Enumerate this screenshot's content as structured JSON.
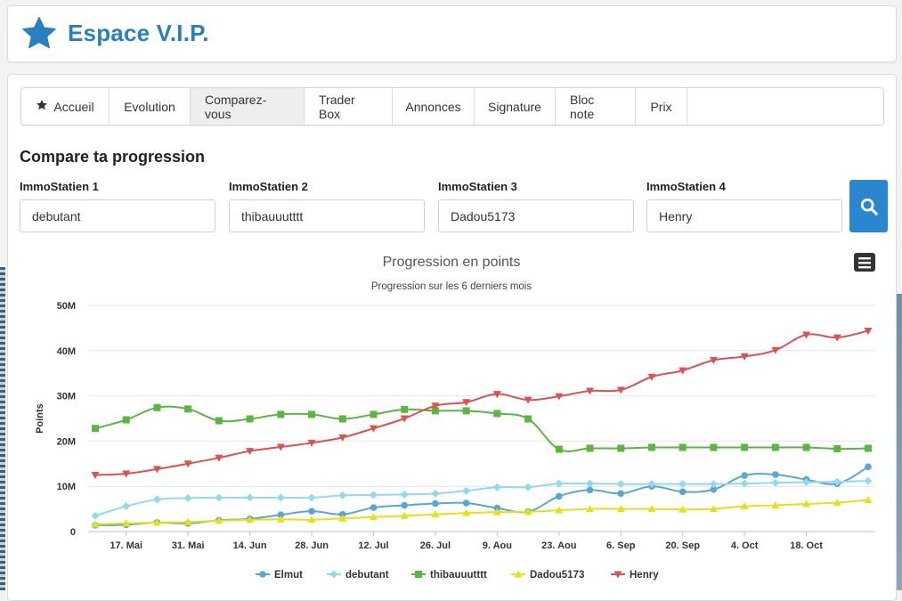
{
  "brand": {
    "title": "Espace V.I.P."
  },
  "tabs": [
    {
      "label": "Accueil",
      "icon": "star-icon"
    },
    {
      "label": "Evolution"
    },
    {
      "label": "Comparez-vous",
      "active": true
    },
    {
      "label": "Trader Box"
    },
    {
      "label": "Annonces"
    },
    {
      "label": "Signature"
    },
    {
      "label": "Bloc note"
    },
    {
      "label": "Prix"
    }
  ],
  "compare": {
    "title": "Compare ta progression",
    "fields": [
      {
        "label": "ImmoStatien 1",
        "value": "debutant"
      },
      {
        "label": "ImmoStatien 2",
        "value": "thibauuutttt"
      },
      {
        "label": "ImmoStatien 3",
        "value": "Dadou5173"
      },
      {
        "label": "ImmoStatien 4",
        "value": "Henry"
      }
    ],
    "search_icon": "search-icon"
  },
  "chart_data": {
    "type": "line",
    "title": "Progression en points",
    "subtitle": "Progression sur les 6 derniers mois",
    "ylabel": "Points",
    "ylim": [
      0,
      50000000
    ],
    "y_ticks": [
      "0",
      "10M",
      "20M",
      "30M",
      "40M",
      "50M"
    ],
    "x_ticks": [
      "17. Mai",
      "31. Mai",
      "14. Jun",
      "28. Jun",
      "12. Jul",
      "26. Jul",
      "9. Aou",
      "23. Aou",
      "6. Sep",
      "20. Sep",
      "4. Oct",
      "18. Oct"
    ],
    "grid": true,
    "legend": "bottom-center",
    "menu_icon": "hamburger-menu-icon",
    "x": [
      "2023-05-10",
      "2023-05-17",
      "2023-05-24",
      "2023-05-31",
      "2023-06-07",
      "2023-06-14",
      "2023-06-21",
      "2023-06-28",
      "2023-07-05",
      "2023-07-12",
      "2023-07-19",
      "2023-07-26",
      "2023-08-02",
      "2023-08-09",
      "2023-08-16",
      "2023-08-23",
      "2023-08-30",
      "2023-09-06",
      "2023-09-13",
      "2023-09-20",
      "2023-09-27",
      "2023-10-04",
      "2023-10-11",
      "2023-10-18",
      "2023-10-25",
      "2023-11-01"
    ],
    "series": [
      {
        "name": "Elmut",
        "color": "#5ba6cc",
        "marker": "circle",
        "values": [
          1.4,
          1.5,
          2.0,
          1.8,
          2.5,
          2.8,
          3.7,
          4.5,
          3.8,
          5.3,
          5.8,
          6.2,
          6.3,
          5.2,
          4.4,
          7.8,
          9.2,
          8.4,
          10.0,
          8.8,
          9.3,
          12.4,
          12.6,
          11.5,
          10.6,
          14.3
        ]
      },
      {
        "name": "debutant",
        "color": "#94d8ef",
        "marker": "diamond",
        "values": [
          3.5,
          5.6,
          7.1,
          7.4,
          7.5,
          7.5,
          7.5,
          7.5,
          8.0,
          8.1,
          8.2,
          8.4,
          9.0,
          9.8,
          9.8,
          10.6,
          10.6,
          10.5,
          10.5,
          10.5,
          10.5,
          10.6,
          10.8,
          10.9,
          11.0,
          11.2
        ]
      },
      {
        "name": "thibauuutttt",
        "color": "#5cb443",
        "marker": "square",
        "values": [
          22.8,
          24.7,
          27.4,
          27.1,
          24.5,
          24.9,
          25.9,
          25.9,
          24.9,
          25.9,
          27.0,
          26.7,
          26.7,
          26.1,
          24.9,
          18.2,
          18.4,
          18.4,
          18.6,
          18.6,
          18.6,
          18.6,
          18.6,
          18.6,
          18.3,
          18.4
        ]
      },
      {
        "name": "Dadou5173",
        "color": "#e6df1c",
        "marker": "triangle",
        "values": [
          1.6,
          1.8,
          2.0,
          2.1,
          2.4,
          2.6,
          2.7,
          2.6,
          2.9,
          3.2,
          3.5,
          3.8,
          4.1,
          4.3,
          4.4,
          4.7,
          5.0,
          5.0,
          5.0,
          4.9,
          5.0,
          5.6,
          5.8,
          6.1,
          6.4,
          7.0
        ]
      },
      {
        "name": "Henry",
        "color": "#d85352",
        "marker": "triangle-down",
        "values": [
          12.5,
          12.8,
          13.8,
          15.0,
          16.3,
          17.8,
          18.7,
          19.6,
          20.8,
          22.8,
          25.0,
          27.8,
          28.6,
          30.4,
          29.1,
          29.9,
          31.1,
          31.3,
          34.2,
          35.6,
          37.9,
          38.7,
          40.1,
          43.5,
          42.9,
          44.4
        ]
      }
    ],
    "units": "millions"
  }
}
